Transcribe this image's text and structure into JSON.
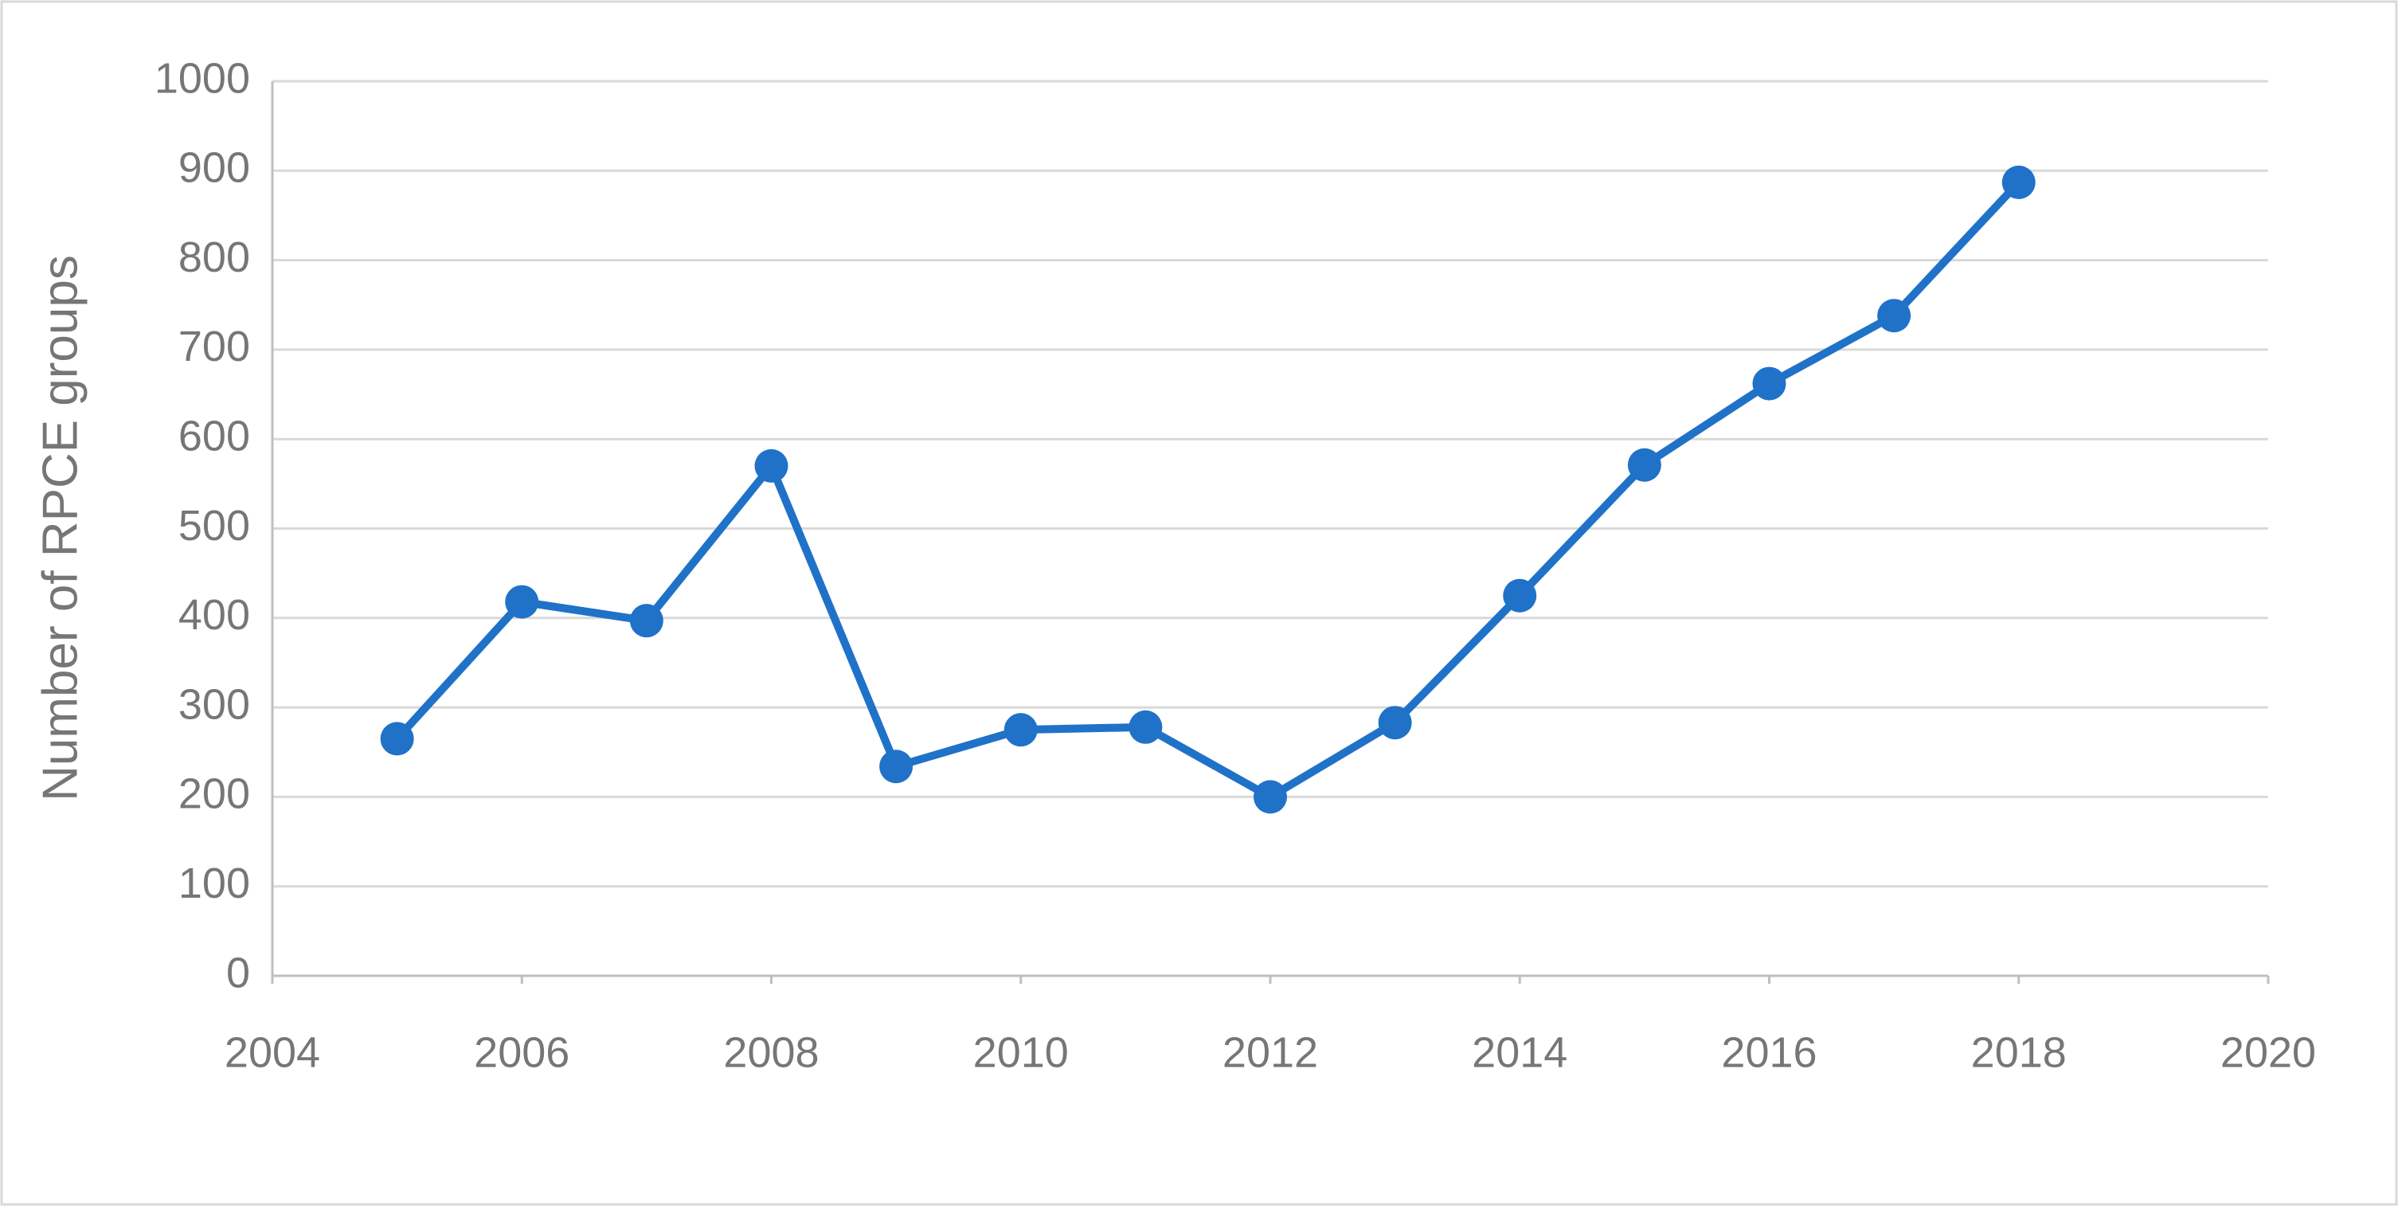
{
  "chart_data": {
    "type": "line",
    "y_label": "Number of RPCE groups",
    "x": [
      2005,
      2006,
      2007,
      2008,
      2009,
      2010,
      2011,
      2012,
      2013,
      2014,
      2015,
      2016,
      2017,
      2018
    ],
    "series": [
      {
        "color": "#1f72c8",
        "values": [
          265,
          418,
          397,
          570,
          234,
          275,
          278,
          200,
          283,
          425,
          571,
          662,
          738,
          887
        ]
      }
    ],
    "xlim": [
      2004,
      2020
    ],
    "xticks": [
      2004,
      2006,
      2008,
      2010,
      2012,
      2014,
      2016,
      2018,
      2020
    ],
    "ylim": [
      0,
      1000
    ],
    "yticks": [
      0,
      100,
      200,
      300,
      400,
      500,
      600,
      700,
      800,
      900,
      1000
    ],
    "grid": true
  }
}
